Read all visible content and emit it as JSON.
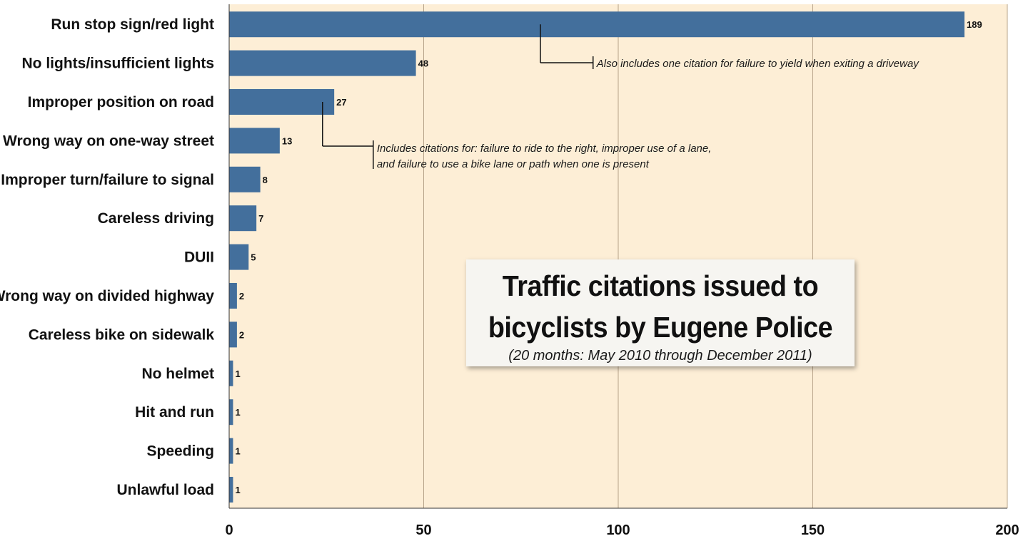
{
  "chart_data": {
    "type": "bar",
    "orientation": "horizontal",
    "title": "Traffic citations issued to bicyclists by Eugene Police",
    "title_lines": [
      "Traffic citations issued to",
      "bicyclists by Eugene Police"
    ],
    "subtitle": "(20 months: May 2010 through December 2011)",
    "categories": [
      "Run stop sign/red light",
      "No lights/insufficient lights",
      "Improper position on road",
      "Wrong way on one-way street",
      "Improper turn/failure to signal",
      "Careless driving",
      "DUII",
      "Wrong way on divided highway",
      "Careless bike on sidewalk",
      "No helmet",
      "Hit and run",
      "Speeding",
      "Unlawful load"
    ],
    "values": [
      189,
      48,
      27,
      13,
      8,
      7,
      5,
      2,
      2,
      1,
      1,
      1,
      1
    ],
    "xlim": [
      0,
      200
    ],
    "xticks": [
      0,
      50,
      100,
      150,
      200
    ],
    "xlabel": "",
    "ylabel": "",
    "grid": true,
    "annotations": [
      {
        "category_index": 0,
        "lines": [
          "Also includes one citation for failure to yield when exiting a driveway"
        ],
        "bracket_x_value": 80,
        "text_x_value": 95
      },
      {
        "category_index": 2,
        "lines": [
          "Includes citations for: failure to ride to the right, improper use of a lane,",
          "and failure to use a bike lane or path when one is present"
        ],
        "bracket_x_value": 24,
        "text_x_value": 38.5
      }
    ]
  },
  "colors": {
    "bar": "#436f9c",
    "plot_background": "#fdeed6",
    "gridline": "#b8a48a",
    "axis": "#333333"
  }
}
